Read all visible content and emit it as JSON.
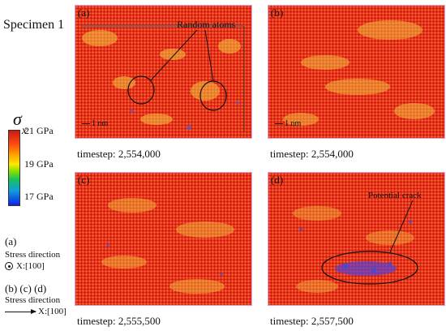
{
  "specimen_title": "Specimen 1",
  "colorbar": {
    "symbol": "σ",
    "subscript": "x",
    "ticks": [
      "21 GPa",
      "19 GPa",
      "17 GPa"
    ],
    "colors": [
      "#c81a12",
      "#ffa000",
      "#ffe800",
      "#18c060",
      "#10a0d8",
      "#1020e8"
    ]
  },
  "legend": {
    "a_label": "(a)",
    "a_stress": "Stress direction",
    "a_direction": "X:[100]",
    "bcd_label": "(b) (c) (d)",
    "bcd_stress": "Stress direction",
    "bcd_direction": "X:[100]"
  },
  "panels": [
    {
      "label": "(a)",
      "timestep": "timestep: 2,554,000",
      "scale": "1 nm",
      "annotation": "Random atoms"
    },
    {
      "label": "(b)",
      "timestep": "timestep: 2,554,000",
      "scale": "1 nm"
    },
    {
      "label": "(c)",
      "timestep": "timestep: 2,555,500"
    },
    {
      "label": "(d)",
      "timestep": "timestep: 2,557,500",
      "annotation": "Potential crack"
    }
  ]
}
